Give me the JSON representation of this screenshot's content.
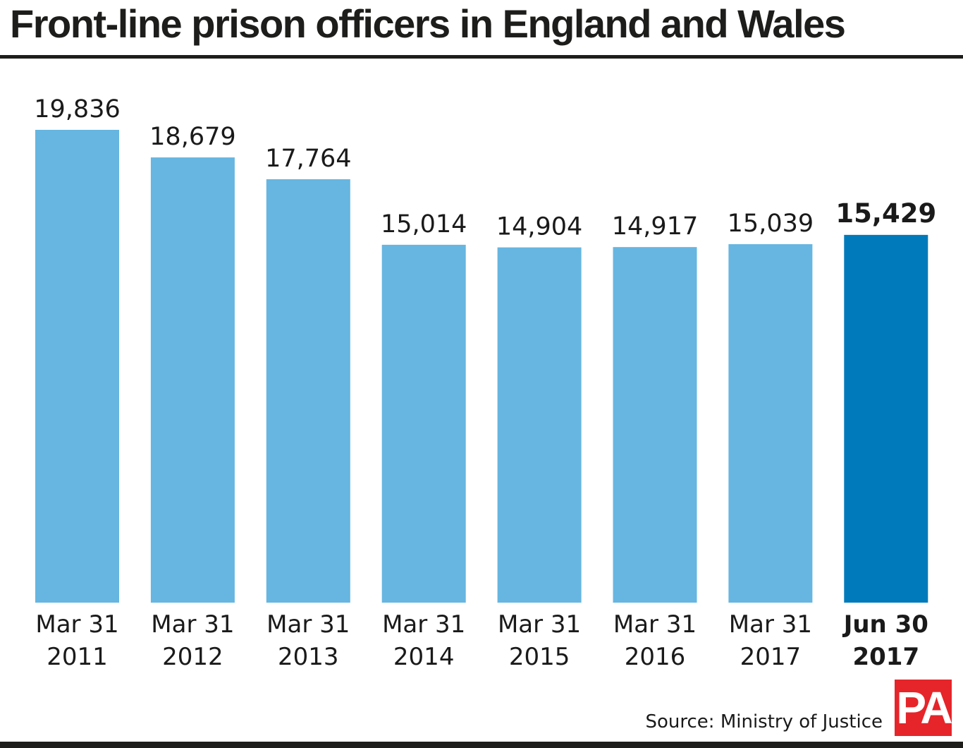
{
  "title": "Front-line prison officers in England and Wales",
  "source": "Source: Ministry of Justice",
  "logo_text": "PA",
  "colors": {
    "bar": "#66b6e1",
    "highlight": "#007abb",
    "logo": "#e5252a"
  },
  "chart_data": {
    "type": "bar",
    "title": "Front-line prison officers in England and Wales",
    "categories": [
      [
        "Mar 31",
        "2011"
      ],
      [
        "Mar 31",
        "2012"
      ],
      [
        "Mar 31",
        "2013"
      ],
      [
        "Mar 31",
        "2014"
      ],
      [
        "Mar 31",
        "2015"
      ],
      [
        "Mar 31",
        "2016"
      ],
      [
        "Mar 31",
        "2017"
      ],
      [
        "Jun 30",
        "2017"
      ]
    ],
    "values": [
      19836,
      18679,
      17764,
      15014,
      14904,
      14917,
      15039,
      15429
    ],
    "labels": [
      "19,836",
      "18,679",
      "17,764",
      "15,014",
      "14,904",
      "14,917",
      "15,039",
      "15,429"
    ],
    "highlight_index": 7,
    "ylim": [
      0,
      19836
    ],
    "grid": false
  }
}
